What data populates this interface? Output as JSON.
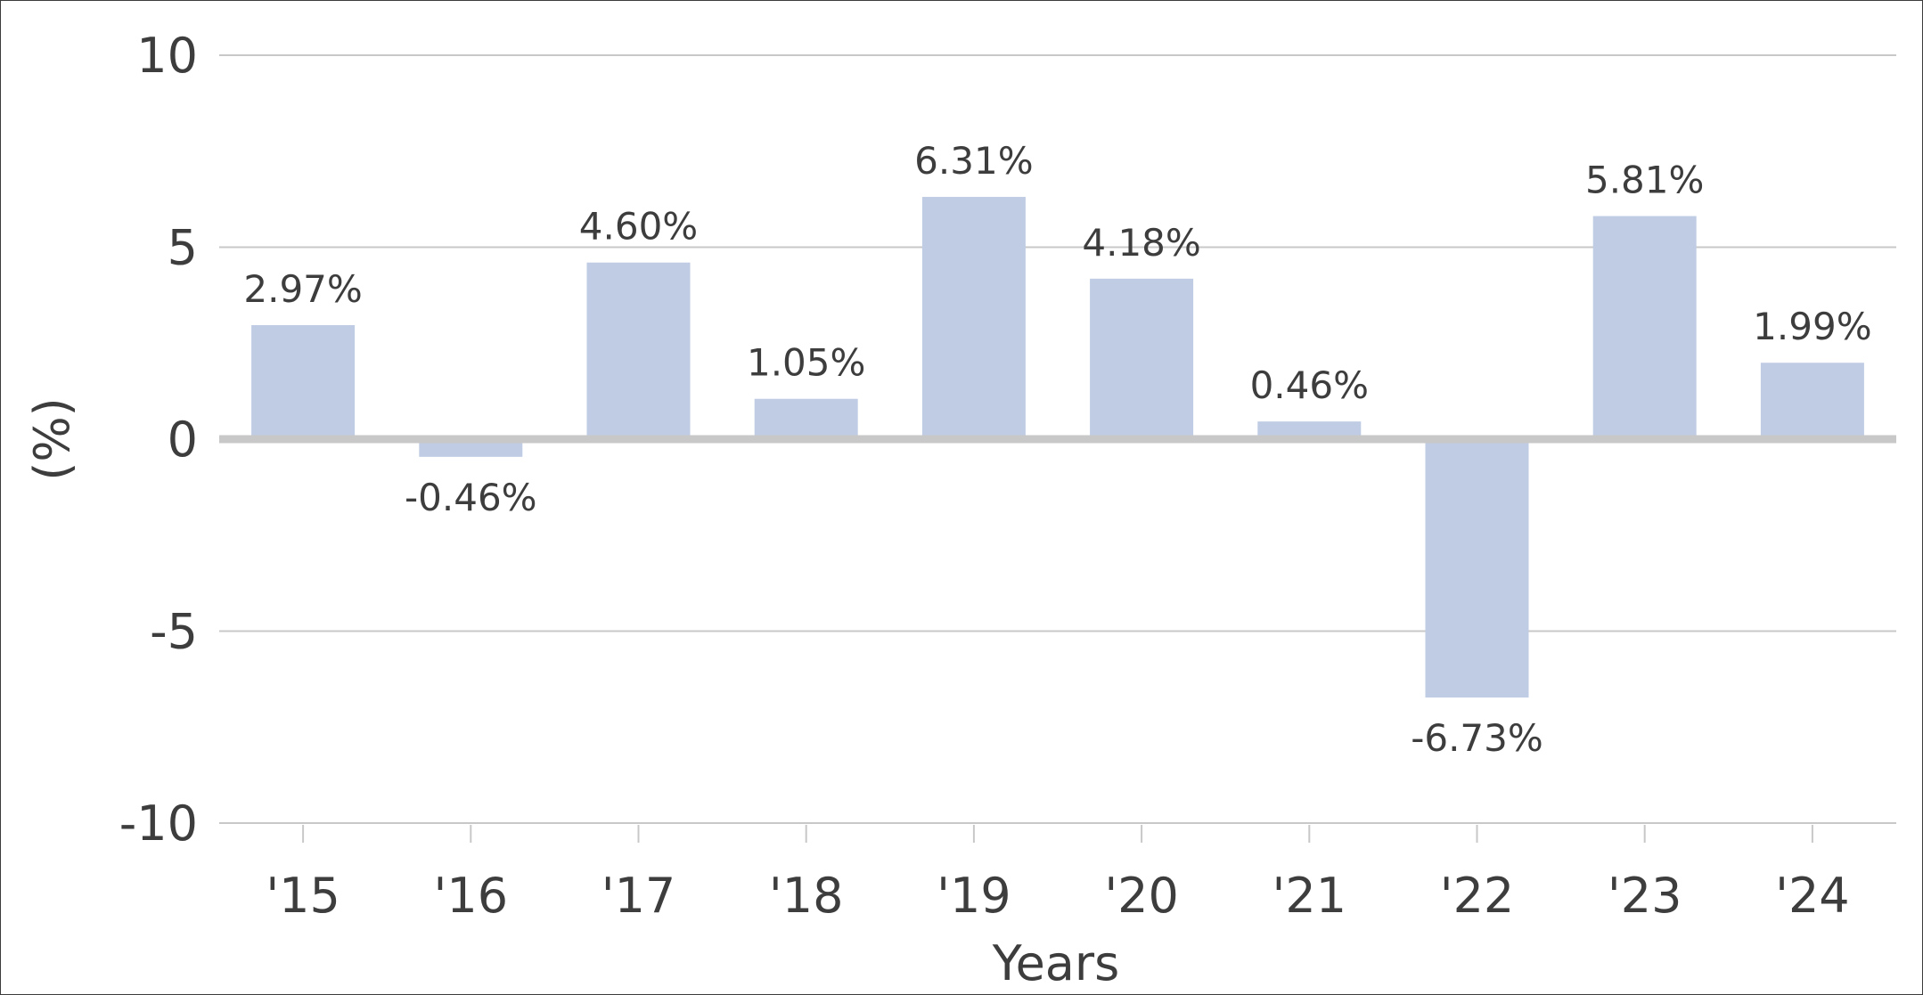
{
  "chart_data": {
    "type": "bar",
    "categories": [
      "'15",
      "'16",
      "'17",
      "'18",
      "'19",
      "'20",
      "'21",
      "'22",
      "'23",
      "'24"
    ],
    "values": [
      2.97,
      -0.46,
      4.6,
      1.05,
      6.31,
      4.18,
      0.46,
      -6.73,
      5.81,
      1.99
    ],
    "data_labels": [
      "2.97%",
      "-0.46%",
      "4.60%",
      "1.05%",
      "6.31%",
      "4.18%",
      "0.46%",
      "-6.73%",
      "5.81%",
      "1.99%"
    ],
    "xlabel": "Years",
    "ylabel": "(%)",
    "ylim": [
      -10,
      10
    ],
    "yticks": [
      10,
      5,
      0,
      -5,
      -10
    ],
    "ytick_labels": [
      "10",
      "5",
      "0",
      "-5",
      "-10"
    ],
    "grid": true,
    "legend": "none",
    "colors": {
      "bar": "#bfcce4",
      "gridline": "#c8c8c8",
      "zero_line": "#c8c8c8",
      "text": "#3d3d3d"
    }
  }
}
